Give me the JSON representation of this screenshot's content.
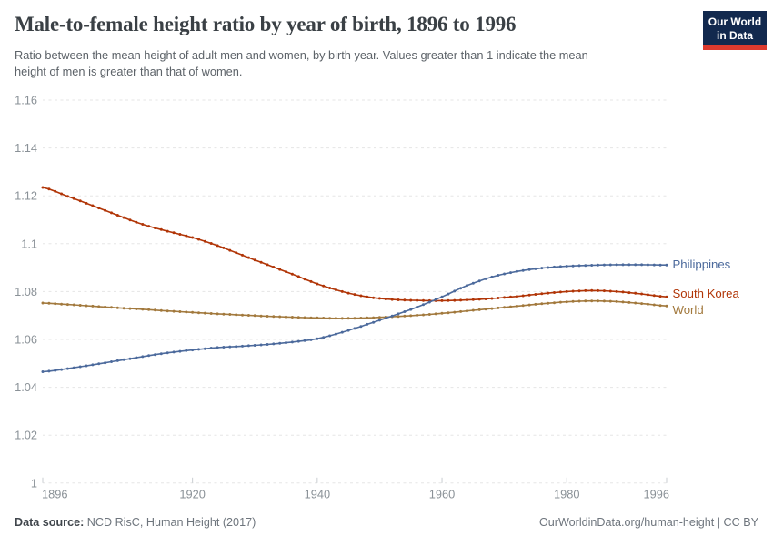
{
  "header": {
    "title": "Male-to-female height ratio by year of birth, 1896 to 1996",
    "subtitle_lines": [
      "Ratio between the mean height of adult men and women, by birth year. Values greater than 1 indicate the mean",
      "height of men is greater than that of women."
    ],
    "logo": {
      "line1": "Our World",
      "line2": "in Data",
      "bg_color": "#12294E",
      "stripe_color": "#DC3A2E"
    }
  },
  "footer": {
    "source_label": "Data source:",
    "source_value": " NCD RisC, Human Height (2017)",
    "attribution": "OurWorldinData.org/human-height | CC BY"
  },
  "chart_data": {
    "type": "line",
    "title": "Male-to-female height ratio by year of birth, 1896 to 1996",
    "xlabel": "",
    "ylabel": "",
    "xlim": [
      1896,
      1996
    ],
    "ylim": [
      1,
      1.16
    ],
    "grid": "dashed-horizontal",
    "marker_style": "dot-every-year",
    "legend_position": "right-end-of-line",
    "x_ticks": [
      1896,
      1920,
      1940,
      1960,
      1980,
      1996
    ],
    "y_ticks": [
      {
        "v": 1,
        "label": "1"
      },
      {
        "v": 1.02,
        "label": "1.02"
      },
      {
        "v": 1.04,
        "label": "1.04"
      },
      {
        "v": 1.06,
        "label": "1.06"
      },
      {
        "v": 1.08,
        "label": "1.08"
      },
      {
        "v": 1.1,
        "label": "1.1"
      },
      {
        "v": 1.12,
        "label": "1.12"
      },
      {
        "v": 1.14,
        "label": "1.14"
      },
      {
        "v": 1.16,
        "label": "1.16"
      }
    ],
    "series": [
      {
        "name": "World",
        "color": "#A2793D",
        "label_dy": 5,
        "anchors": [
          [
            1896,
            1.0752
          ],
          [
            1900,
            1.0746
          ],
          [
            1904,
            1.0739
          ],
          [
            1908,
            1.0732
          ],
          [
            1912,
            1.0726
          ],
          [
            1916,
            1.0719
          ],
          [
            1920,
            1.0713
          ],
          [
            1924,
            1.0707
          ],
          [
            1928,
            1.0702
          ],
          [
            1932,
            1.0697
          ],
          [
            1936,
            1.0693
          ],
          [
            1940,
            1.069
          ],
          [
            1944,
            1.0688
          ],
          [
            1948,
            1.069
          ],
          [
            1952,
            1.0695
          ],
          [
            1956,
            1.0701
          ],
          [
            1960,
            1.0709
          ],
          [
            1964,
            1.0719
          ],
          [
            1968,
            1.0729
          ],
          [
            1972,
            1.0739
          ],
          [
            1976,
            1.0749
          ],
          [
            1980,
            1.0757
          ],
          [
            1984,
            1.0761
          ],
          [
            1988,
            1.0758
          ],
          [
            1992,
            1.075
          ],
          [
            1996,
            1.074
          ]
        ]
      },
      {
        "name": "South Korea",
        "color": "#B13507",
        "label_dy": -3,
        "anchors": [
          [
            1896,
            1.1235
          ],
          [
            1900,
            1.1198
          ],
          [
            1904,
            1.1159
          ],
          [
            1908,
            1.1119
          ],
          [
            1912,
            1.1081
          ],
          [
            1916,
            1.1052
          ],
          [
            1920,
            1.1026
          ],
          [
            1924,
            1.0992
          ],
          [
            1928,
            1.0952
          ],
          [
            1932,
            1.0912
          ],
          [
            1936,
            1.0873
          ],
          [
            1940,
            1.0832
          ],
          [
            1944,
            1.08
          ],
          [
            1948,
            1.0778
          ],
          [
            1952,
            1.0767
          ],
          [
            1956,
            1.0763
          ],
          [
            1960,
            1.0762
          ],
          [
            1964,
            1.0765
          ],
          [
            1968,
            1.0771
          ],
          [
            1972,
            1.078
          ],
          [
            1976,
            1.0791
          ],
          [
            1980,
            1.08
          ],
          [
            1984,
            1.0804
          ],
          [
            1988,
            1.08
          ],
          [
            1992,
            1.079
          ],
          [
            1996,
            1.0778
          ]
        ]
      },
      {
        "name": "Philippines",
        "color": "#4C6A9C",
        "label_dy": 0,
        "anchors": [
          [
            1896,
            1.0465
          ],
          [
            1900,
            1.0478
          ],
          [
            1904,
            1.0494
          ],
          [
            1908,
            1.0511
          ],
          [
            1912,
            1.0528
          ],
          [
            1916,
            1.0544
          ],
          [
            1920,
            1.0556
          ],
          [
            1924,
            1.0566
          ],
          [
            1928,
            1.0572
          ],
          [
            1932,
            1.0579
          ],
          [
            1936,
            1.0589
          ],
          [
            1940,
            1.0603
          ],
          [
            1944,
            1.063
          ],
          [
            1948,
            1.0663
          ],
          [
            1952,
            1.0698
          ],
          [
            1956,
            1.0735
          ],
          [
            1960,
            1.0778
          ],
          [
            1964,
            1.0825
          ],
          [
            1968,
            1.0861
          ],
          [
            1972,
            1.0884
          ],
          [
            1976,
            1.0898
          ],
          [
            1980,
            1.0906
          ],
          [
            1984,
            1.091
          ],
          [
            1988,
            1.0912
          ],
          [
            1992,
            1.0912
          ],
          [
            1996,
            1.0911
          ]
        ]
      }
    ]
  }
}
